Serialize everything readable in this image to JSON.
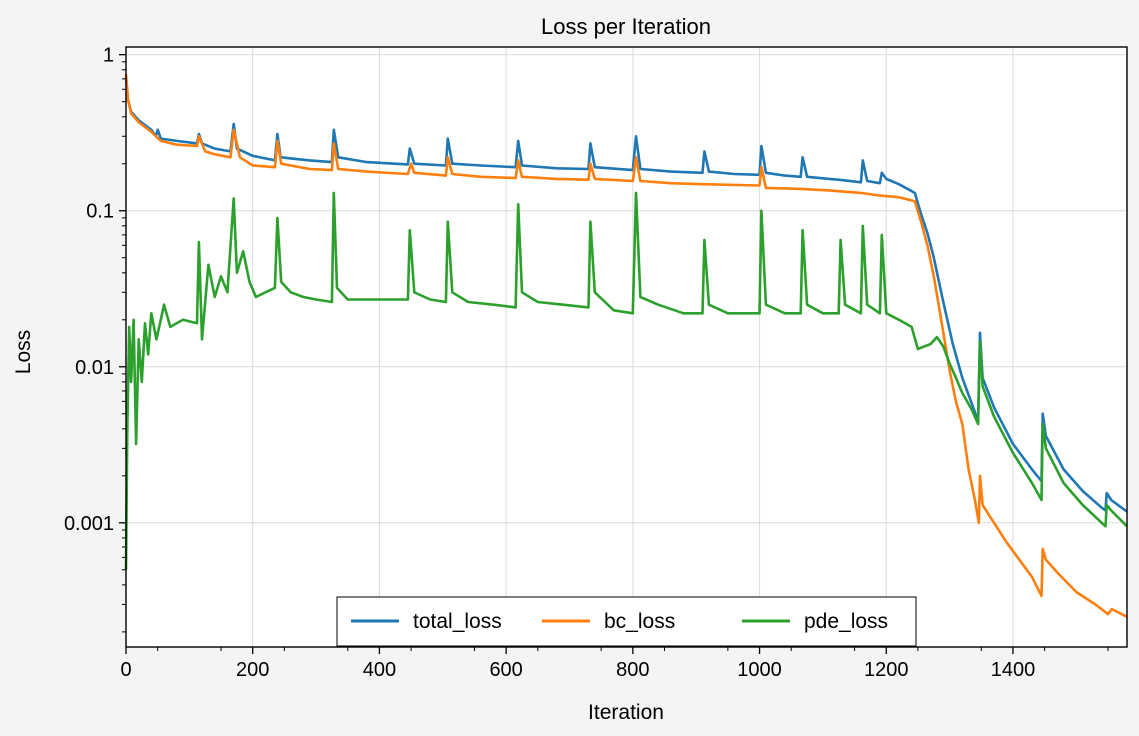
{
  "chart_data": {
    "type": "line",
    "title": "Loss per Iteration",
    "xlabel": "Iteration",
    "ylabel": "Loss",
    "xlim": [
      0,
      1580
    ],
    "ylim": [
      0.00016,
      1.12
    ],
    "yscale": "log",
    "grid": true,
    "x_ticks": [
      0,
      200,
      400,
      600,
      800,
      1000,
      1200,
      1400
    ],
    "x_tick_labels": [
      "0",
      "200",
      "400",
      "600",
      "800",
      "1000",
      "1200",
      "1400"
    ],
    "y_ticks": [
      1,
      0.1,
      0.01,
      0.001
    ],
    "y_tick_labels": [
      "1",
      "0.1",
      "0.01",
      "0.001"
    ],
    "legend_position": "bottom-center",
    "series": [
      {
        "name": "total_loss",
        "color": "#1f77b4",
        "points": [
          [
            0,
            0.72
          ],
          [
            3,
            0.52
          ],
          [
            8,
            0.43
          ],
          [
            20,
            0.38
          ],
          [
            40,
            0.33
          ],
          [
            47,
            0.3
          ],
          [
            50,
            0.33
          ],
          [
            55,
            0.29
          ],
          [
            80,
            0.28
          ],
          [
            112,
            0.27
          ],
          [
            115,
            0.31
          ],
          [
            120,
            0.27
          ],
          [
            140,
            0.25
          ],
          [
            165,
            0.24
          ],
          [
            170,
            0.36
          ],
          [
            175,
            0.25
          ],
          [
            200,
            0.225
          ],
          [
            235,
            0.21
          ],
          [
            239,
            0.31
          ],
          [
            244,
            0.22
          ],
          [
            290,
            0.21
          ],
          [
            325,
            0.205
          ],
          [
            328,
            0.33
          ],
          [
            335,
            0.22
          ],
          [
            380,
            0.205
          ],
          [
            445,
            0.198
          ],
          [
            448,
            0.25
          ],
          [
            455,
            0.2
          ],
          [
            505,
            0.195
          ],
          [
            508,
            0.29
          ],
          [
            515,
            0.2
          ],
          [
            560,
            0.195
          ],
          [
            615,
            0.19
          ],
          [
            619,
            0.28
          ],
          [
            625,
            0.195
          ],
          [
            680,
            0.187
          ],
          [
            730,
            0.185
          ],
          [
            733,
            0.27
          ],
          [
            740,
            0.19
          ],
          [
            800,
            0.182
          ],
          [
            805,
            0.3
          ],
          [
            812,
            0.185
          ],
          [
            860,
            0.178
          ],
          [
            910,
            0.175
          ],
          [
            913,
            0.24
          ],
          [
            920,
            0.178
          ],
          [
            960,
            0.172
          ],
          [
            1000,
            0.17
          ],
          [
            1003,
            0.26
          ],
          [
            1010,
            0.175
          ],
          [
            1040,
            0.168
          ],
          [
            1065,
            0.165
          ],
          [
            1068,
            0.22
          ],
          [
            1075,
            0.165
          ],
          [
            1110,
            0.16
          ],
          [
            1125,
            0.158
          ],
          [
            1160,
            0.152
          ],
          [
            1163,
            0.21
          ],
          [
            1170,
            0.155
          ],
          [
            1190,
            0.15
          ],
          [
            1193,
            0.175
          ],
          [
            1200,
            0.16
          ],
          [
            1220,
            0.148
          ],
          [
            1245,
            0.13
          ],
          [
            1255,
            0.095
          ],
          [
            1265,
            0.072
          ],
          [
            1275,
            0.05
          ],
          [
            1290,
            0.026
          ],
          [
            1305,
            0.014
          ],
          [
            1320,
            0.0085
          ],
          [
            1335,
            0.0058
          ],
          [
            1345,
            0.0045
          ],
          [
            1348,
            0.0165
          ],
          [
            1352,
            0.0085
          ],
          [
            1370,
            0.0055
          ],
          [
            1400,
            0.0032
          ],
          [
            1430,
            0.0022
          ],
          [
            1445,
            0.00185
          ],
          [
            1447,
            0.005
          ],
          [
            1452,
            0.0036
          ],
          [
            1480,
            0.0022
          ],
          [
            1510,
            0.0016
          ],
          [
            1540,
            0.00125
          ],
          [
            1546,
            0.0012
          ],
          [
            1548,
            0.00155
          ],
          [
            1555,
            0.0014
          ],
          [
            1580,
            0.00118
          ]
        ]
      },
      {
        "name": "bc_loss",
        "color": "#ff7f0e",
        "points": [
          [
            0,
            0.75
          ],
          [
            3,
            0.52
          ],
          [
            8,
            0.42
          ],
          [
            20,
            0.37
          ],
          [
            40,
            0.32
          ],
          [
            55,
            0.28
          ],
          [
            80,
            0.265
          ],
          [
            112,
            0.26
          ],
          [
            115,
            0.3
          ],
          [
            125,
            0.24
          ],
          [
            140,
            0.23
          ],
          [
            165,
            0.22
          ],
          [
            170,
            0.33
          ],
          [
            180,
            0.22
          ],
          [
            200,
            0.195
          ],
          [
            235,
            0.19
          ],
          [
            239,
            0.28
          ],
          [
            245,
            0.2
          ],
          [
            290,
            0.185
          ],
          [
            325,
            0.182
          ],
          [
            328,
            0.27
          ],
          [
            335,
            0.185
          ],
          [
            380,
            0.178
          ],
          [
            445,
            0.172
          ],
          [
            450,
            0.2
          ],
          [
            455,
            0.175
          ],
          [
            505,
            0.168
          ],
          [
            508,
            0.22
          ],
          [
            515,
            0.172
          ],
          [
            560,
            0.165
          ],
          [
            615,
            0.162
          ],
          [
            619,
            0.21
          ],
          [
            625,
            0.165
          ],
          [
            680,
            0.16
          ],
          [
            730,
            0.158
          ],
          [
            733,
            0.2
          ],
          [
            740,
            0.16
          ],
          [
            800,
            0.155
          ],
          [
            805,
            0.22
          ],
          [
            812,
            0.155
          ],
          [
            860,
            0.15
          ],
          [
            910,
            0.148
          ],
          [
            1000,
            0.145
          ],
          [
            1003,
            0.19
          ],
          [
            1010,
            0.14
          ],
          [
            1065,
            0.138
          ],
          [
            1110,
            0.135
          ],
          [
            1160,
            0.13
          ],
          [
            1190,
            0.125
          ],
          [
            1220,
            0.122
          ],
          [
            1245,
            0.115
          ],
          [
            1255,
            0.085
          ],
          [
            1265,
            0.06
          ],
          [
            1275,
            0.038
          ],
          [
            1285,
            0.022
          ],
          [
            1300,
            0.0095
          ],
          [
            1310,
            0.006
          ],
          [
            1320,
            0.0043
          ],
          [
            1330,
            0.0022
          ],
          [
            1340,
            0.0014
          ],
          [
            1346,
            0.001
          ],
          [
            1348,
            0.002
          ],
          [
            1352,
            0.0013
          ],
          [
            1370,
            0.001
          ],
          [
            1390,
            0.00075
          ],
          [
            1410,
            0.00058
          ],
          [
            1430,
            0.00045
          ],
          [
            1445,
            0.00034
          ],
          [
            1447,
            0.00068
          ],
          [
            1452,
            0.00058
          ],
          [
            1470,
            0.00048
          ],
          [
            1500,
            0.00036
          ],
          [
            1530,
            0.0003
          ],
          [
            1550,
            0.00026
          ],
          [
            1556,
            0.00028
          ],
          [
            1580,
            0.00025
          ]
        ]
      },
      {
        "name": "pde_loss",
        "color": "#2ca02c",
        "points": [
          [
            0,
            0.0005
          ],
          [
            2,
            0.004
          ],
          [
            5,
            0.018
          ],
          [
            8,
            0.008
          ],
          [
            12,
            0.02
          ],
          [
            16,
            0.0032
          ],
          [
            20,
            0.015
          ],
          [
            25,
            0.008
          ],
          [
            30,
            0.019
          ],
          [
            35,
            0.012
          ],
          [
            40,
            0.022
          ],
          [
            48,
            0.015
          ],
          [
            55,
            0.02
          ],
          [
            60,
            0.025
          ],
          [
            70,
            0.018
          ],
          [
            80,
            0.019
          ],
          [
            90,
            0.02
          ],
          [
            112,
            0.019
          ],
          [
            115,
            0.063
          ],
          [
            120,
            0.015
          ],
          [
            130,
            0.045
          ],
          [
            140,
            0.028
          ],
          [
            150,
            0.038
          ],
          [
            160,
            0.03
          ],
          [
            170,
            0.12
          ],
          [
            175,
            0.04
          ],
          [
            185,
            0.055
          ],
          [
            195,
            0.035
          ],
          [
            205,
            0.028
          ],
          [
            220,
            0.03
          ],
          [
            235,
            0.032
          ],
          [
            239,
            0.09
          ],
          [
            245,
            0.035
          ],
          [
            260,
            0.03
          ],
          [
            280,
            0.028
          ],
          [
            300,
            0.027
          ],
          [
            325,
            0.026
          ],
          [
            328,
            0.13
          ],
          [
            333,
            0.032
          ],
          [
            350,
            0.027
          ],
          [
            380,
            0.027
          ],
          [
            420,
            0.027
          ],
          [
            445,
            0.027
          ],
          [
            448,
            0.075
          ],
          [
            455,
            0.03
          ],
          [
            480,
            0.027
          ],
          [
            505,
            0.026
          ],
          [
            508,
            0.085
          ],
          [
            515,
            0.03
          ],
          [
            540,
            0.026
          ],
          [
            580,
            0.025
          ],
          [
            615,
            0.024
          ],
          [
            619,
            0.11
          ],
          [
            625,
            0.03
          ],
          [
            650,
            0.026
          ],
          [
            690,
            0.025
          ],
          [
            730,
            0.024
          ],
          [
            733,
            0.085
          ],
          [
            740,
            0.03
          ],
          [
            770,
            0.023
          ],
          [
            800,
            0.022
          ],
          [
            805,
            0.13
          ],
          [
            812,
            0.028
          ],
          [
            840,
            0.025
          ],
          [
            880,
            0.022
          ],
          [
            910,
            0.022
          ],
          [
            913,
            0.065
          ],
          [
            920,
            0.025
          ],
          [
            950,
            0.022
          ],
          [
            1000,
            0.022
          ],
          [
            1003,
            0.1
          ],
          [
            1010,
            0.025
          ],
          [
            1040,
            0.022
          ],
          [
            1065,
            0.022
          ],
          [
            1068,
            0.075
          ],
          [
            1075,
            0.025
          ],
          [
            1100,
            0.022
          ],
          [
            1125,
            0.022
          ],
          [
            1128,
            0.065
          ],
          [
            1135,
            0.025
          ],
          [
            1160,
            0.022
          ],
          [
            1163,
            0.08
          ],
          [
            1170,
            0.025
          ],
          [
            1190,
            0.022
          ],
          [
            1193,
            0.07
          ],
          [
            1200,
            0.022
          ],
          [
            1220,
            0.02
          ],
          [
            1240,
            0.018
          ],
          [
            1250,
            0.013
          ],
          [
            1260,
            0.0135
          ],
          [
            1270,
            0.014
          ],
          [
            1280,
            0.0155
          ],
          [
            1290,
            0.0135
          ],
          [
            1300,
            0.0105
          ],
          [
            1310,
            0.0085
          ],
          [
            1320,
            0.0068
          ],
          [
            1335,
            0.0053
          ],
          [
            1345,
            0.0043
          ],
          [
            1348,
            0.0145
          ],
          [
            1352,
            0.0075
          ],
          [
            1370,
            0.0048
          ],
          [
            1400,
            0.0028
          ],
          [
            1430,
            0.0018
          ],
          [
            1445,
            0.0014
          ],
          [
            1447,
            0.0043
          ],
          [
            1452,
            0.003
          ],
          [
            1480,
            0.0018
          ],
          [
            1510,
            0.0013
          ],
          [
            1540,
            0.001
          ],
          [
            1546,
            0.00095
          ],
          [
            1548,
            0.0013
          ],
          [
            1555,
            0.0012
          ],
          [
            1580,
            0.00095
          ]
        ]
      }
    ]
  }
}
